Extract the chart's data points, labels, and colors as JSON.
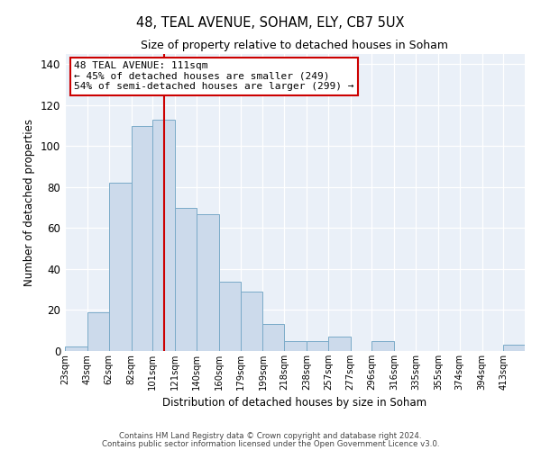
{
  "title1": "48, TEAL AVENUE, SOHAM, ELY, CB7 5UX",
  "title2": "Size of property relative to detached houses in Soham",
  "xlabel": "Distribution of detached houses by size in Soham",
  "ylabel": "Number of detached properties",
  "bar_color": "#ccdaeb",
  "bar_edge_color": "#7aaac8",
  "background_color": "#eaf0f8",
  "annotation_line1": "48 TEAL AVENUE: 111sqm",
  "annotation_line2": "← 45% of detached houses are smaller (249)",
  "annotation_line3": "54% of semi-detached houses are larger (299) →",
  "vline_x": 111,
  "vline_color": "#cc0000",
  "bins": [
    23,
    43,
    62,
    82,
    101,
    121,
    140,
    160,
    179,
    199,
    218,
    238,
    257,
    277,
    296,
    316,
    335,
    355,
    374,
    394,
    413
  ],
  "values": [
    2,
    19,
    82,
    110,
    113,
    70,
    67,
    34,
    29,
    13,
    5,
    5,
    7,
    0,
    5,
    0,
    0,
    0,
    0,
    0,
    3
  ],
  "ylim": [
    0,
    145
  ],
  "yticks": [
    0,
    20,
    40,
    60,
    80,
    100,
    120,
    140
  ],
  "footer_line1": "Contains HM Land Registry data © Crown copyright and database right 2024.",
  "footer_line2": "Contains public sector information licensed under the Open Government Licence v3.0."
}
